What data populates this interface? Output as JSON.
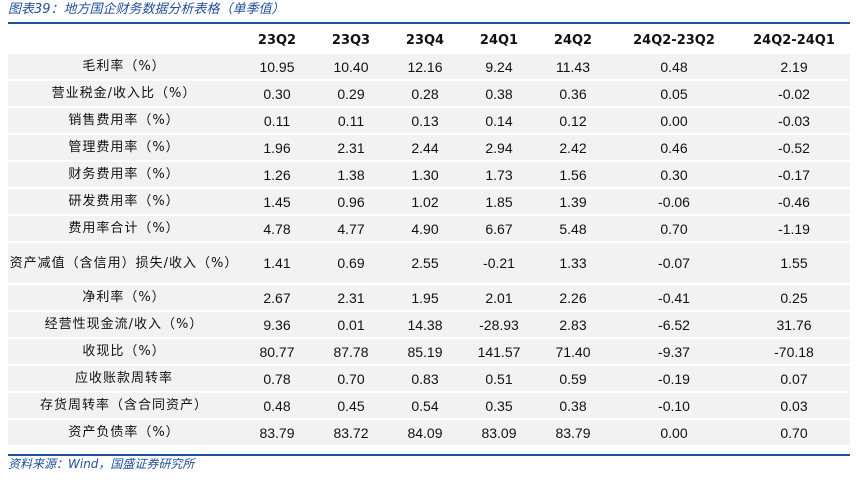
{
  "caption": "图表39：地方国企财务数据分析表格（单季值）",
  "source": "资料来源：Wind，国盛证券研究所",
  "table": {
    "headers": [
      "",
      "23Q2",
      "23Q3",
      "23Q4",
      "24Q1",
      "24Q2",
      "24Q2-23Q2",
      "24Q2-24Q1"
    ],
    "rows": [
      {
        "label": "毛利率（%）",
        "values": [
          "10.95",
          "10.40",
          "12.16",
          "9.24",
          "11.43",
          "0.48",
          "2.19"
        ]
      },
      {
        "label": "营业税金/收入比（%）",
        "values": [
          "0.30",
          "0.29",
          "0.28",
          "0.38",
          "0.36",
          "0.05",
          "-0.02"
        ]
      },
      {
        "label": "销售费用率（%）",
        "values": [
          "0.11",
          "0.11",
          "0.13",
          "0.14",
          "0.12",
          "0.00",
          "-0.03"
        ]
      },
      {
        "label": "管理费用率（%）",
        "values": [
          "1.96",
          "2.31",
          "2.44",
          "2.94",
          "2.42",
          "0.46",
          "-0.52"
        ]
      },
      {
        "label": "财务费用率（%）",
        "values": [
          "1.26",
          "1.38",
          "1.30",
          "1.73",
          "1.56",
          "0.30",
          "-0.17"
        ]
      },
      {
        "label": "研发费用率（%）",
        "values": [
          "1.45",
          "0.96",
          "1.02",
          "1.85",
          "1.39",
          "-0.06",
          "-0.46"
        ]
      },
      {
        "label": "费用率合计（%）",
        "values": [
          "4.78",
          "4.77",
          "4.90",
          "6.67",
          "5.48",
          "0.70",
          "-1.19"
        ]
      },
      {
        "label": "资产减值（含信用）损失/收入（%）",
        "values": [
          "1.41",
          "0.69",
          "2.55",
          "-0.21",
          "1.33",
          "-0.07",
          "1.55"
        ]
      },
      {
        "label": "净利率（%）",
        "values": [
          "2.67",
          "2.31",
          "1.95",
          "2.01",
          "2.26",
          "-0.41",
          "0.25"
        ]
      },
      {
        "label": "经营性现金流/收入（%）",
        "values": [
          "9.36",
          "0.01",
          "14.38",
          "-28.93",
          "2.83",
          "-6.52",
          "31.76"
        ]
      },
      {
        "label": "收现比（%）",
        "values": [
          "80.77",
          "87.78",
          "85.19",
          "141.57",
          "71.40",
          "-9.37",
          "-70.18"
        ]
      },
      {
        "label": "应收账款周转率",
        "values": [
          "0.78",
          "0.70",
          "0.83",
          "0.51",
          "0.59",
          "-0.19",
          "0.07"
        ]
      },
      {
        "label": "存货周转率（含合同资产）",
        "values": [
          "0.48",
          "0.45",
          "0.54",
          "0.35",
          "0.38",
          "-0.10",
          "0.03"
        ]
      },
      {
        "label": "资产负债率（%）",
        "values": [
          "83.79",
          "83.72",
          "84.09",
          "83.09",
          "83.79",
          "0.00",
          "0.70"
        ]
      }
    ]
  }
}
